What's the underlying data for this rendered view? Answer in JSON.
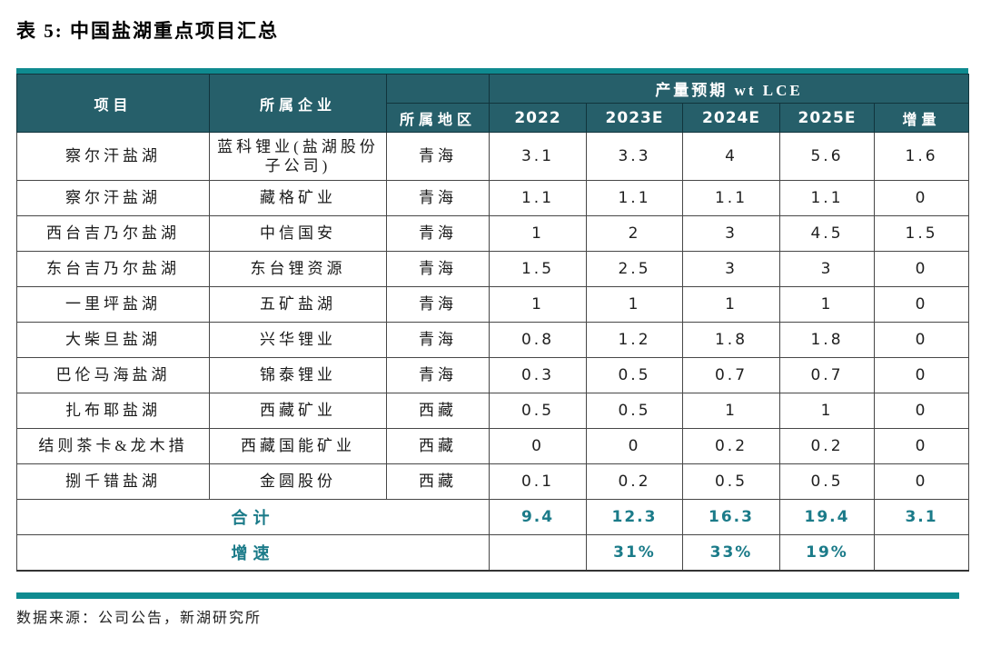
{
  "title": "表 5: 中国盐湖重点项目汇总",
  "footer": {
    "source": "数据来源：公司公告，新湖研究所"
  },
  "colors": {
    "accent_bar": "#0F8B90",
    "header_bg": "#265F6A",
    "header_text": "#FFFFFF",
    "summary_text": "#1B7B89",
    "body_text": "#1A1A1A"
  },
  "table": {
    "headers": {
      "project": "项目",
      "company": "所属企业",
      "region": "所属地区",
      "production_group": "产量预期 wt LCE",
      "years": [
        "2022",
        "2023E",
        "2024E",
        "2025E",
        "增量"
      ]
    },
    "rows": [
      {
        "project": "察尔汗盐湖",
        "company": "蓝科锂业(盐湖股份子公司)",
        "region": "青海",
        "values": [
          "3.1",
          "3.3",
          "4",
          "5.6",
          "1.6"
        ]
      },
      {
        "project": "察尔汗盐湖",
        "company": "藏格矿业",
        "region": "青海",
        "values": [
          "1.1",
          "1.1",
          "1.1",
          "1.1",
          "0"
        ]
      },
      {
        "project": "西台吉乃尔盐湖",
        "company": "中信国安",
        "region": "青海",
        "values": [
          "1",
          "2",
          "3",
          "4.5",
          "1.5"
        ]
      },
      {
        "project": "东台吉乃尔盐湖",
        "company": "东台锂资源",
        "region": "青海",
        "values": [
          "1.5",
          "2.5",
          "3",
          "3",
          "0"
        ]
      },
      {
        "project": "一里坪盐湖",
        "company": "五矿盐湖",
        "region": "青海",
        "values": [
          "1",
          "1",
          "1",
          "1",
          "0"
        ]
      },
      {
        "project": "大柴旦盐湖",
        "company": "兴华锂业",
        "region": "青海",
        "values": [
          "0.8",
          "1.2",
          "1.8",
          "1.8",
          "0"
        ]
      },
      {
        "project": "巴伦马海盐湖",
        "company": "锦泰锂业",
        "region": "青海",
        "values": [
          "0.3",
          "0.5",
          "0.7",
          "0.7",
          "0"
        ]
      },
      {
        "project": "扎布耶盐湖",
        "company": "西藏矿业",
        "region": "西藏",
        "values": [
          "0.5",
          "0.5",
          "1",
          "1",
          "0"
        ]
      },
      {
        "project": "结则茶卡&龙木措",
        "company": "西藏国能矿业",
        "region": "西藏",
        "values": [
          "0",
          "0",
          "0.2",
          "0.2",
          "0"
        ]
      },
      {
        "project": "捌千错盐湖",
        "company": "金圆股份",
        "region": "西藏",
        "values": [
          "0.1",
          "0.2",
          "0.5",
          "0.5",
          "0"
        ]
      }
    ],
    "total_row": {
      "label": "合计",
      "values": [
        "9.4",
        "12.3",
        "16.3",
        "19.4",
        "3.1"
      ]
    },
    "growth_row": {
      "label": "增速",
      "values": [
        "",
        "31%",
        "33%",
        "19%",
        ""
      ]
    }
  },
  "chart_data": {
    "type": "table",
    "title": "表 5: 中国盐湖重点项目汇总",
    "column_group": {
      "label": "产量预期 wt LCE",
      "spans": [
        "2022",
        "2023E",
        "2024E",
        "2025E",
        "增量"
      ]
    },
    "columns": [
      "项目",
      "所属企业",
      "所属地区",
      "2022",
      "2023E",
      "2024E",
      "2025E",
      "增量"
    ],
    "rows": [
      [
        "察尔汗盐湖",
        "蓝科锂业(盐湖股份子公司)",
        "青海",
        3.1,
        3.3,
        4,
        5.6,
        1.6
      ],
      [
        "察尔汗盐湖",
        "藏格矿业",
        "青海",
        1.1,
        1.1,
        1.1,
        1.1,
        0
      ],
      [
        "西台吉乃尔盐湖",
        "中信国安",
        "青海",
        1,
        2,
        3,
        4.5,
        1.5
      ],
      [
        "东台吉乃尔盐湖",
        "东台锂资源",
        "青海",
        1.5,
        2.5,
        3,
        3,
        0
      ],
      [
        "一里坪盐湖",
        "五矿盐湖",
        "青海",
        1,
        1,
        1,
        1,
        0
      ],
      [
        "大柴旦盐湖",
        "兴华锂业",
        "青海",
        0.8,
        1.2,
        1.8,
        1.8,
        0
      ],
      [
        "巴伦马海盐湖",
        "锦泰锂业",
        "青海",
        0.3,
        0.5,
        0.7,
        0.7,
        0
      ],
      [
        "扎布耶盐湖",
        "西藏矿业",
        "西藏",
        0.5,
        0.5,
        1,
        1,
        0
      ],
      [
        "结则茶卡&龙木措",
        "西藏国能矿业",
        "西藏",
        0,
        0,
        0.2,
        0.2,
        0
      ],
      [
        "捌千错盐湖",
        "金圆股份",
        "西藏",
        0.1,
        0.2,
        0.5,
        0.5,
        0
      ]
    ],
    "total": [
      "合计",
      9.4,
      12.3,
      16.3,
      19.4,
      3.1
    ],
    "growth_rate": [
      "增速",
      null,
      "31%",
      "33%",
      "19%",
      null
    ],
    "source": "数据来源：公司公告，新湖研究所"
  }
}
